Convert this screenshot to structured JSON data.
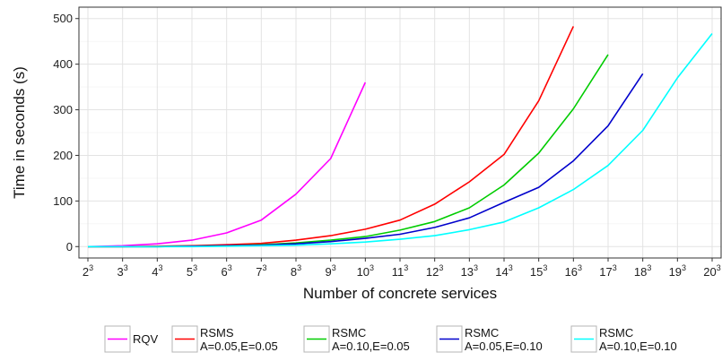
{
  "chart_data": {
    "type": "line",
    "xlabel": "Number of concrete services",
    "ylabel": "Time in seconds (s)",
    "ylim": [
      0,
      500
    ],
    "y_ticks": [
      0,
      100,
      200,
      300,
      400,
      500
    ],
    "x": [
      2,
      3,
      4,
      5,
      6,
      7,
      8,
      9,
      10,
      11,
      12,
      13,
      14,
      15,
      16,
      17,
      18,
      19,
      20
    ],
    "x_tick_bases": [
      "2",
      "3",
      "4",
      "5",
      "6",
      "7",
      "8",
      "9",
      "10",
      "11",
      "12",
      "13",
      "14",
      "15",
      "16",
      "17",
      "18",
      "19",
      "20"
    ],
    "x_tick_exponent": "3",
    "grid": true,
    "legend_position": "bottom",
    "series": [
      {
        "name": "RQV",
        "name_line2": "",
        "color": "#ff00ff",
        "x": [
          2,
          3,
          4,
          5,
          6,
          7,
          8,
          9,
          10
        ],
        "values": [
          0,
          2,
          6,
          14,
          30,
          58,
          115,
          193,
          360
        ]
      },
      {
        "name": "RSMS",
        "name_line2": "A=0.05,E=0.05",
        "color": "#ff0000",
        "x": [
          2,
          3,
          4,
          5,
          6,
          7,
          8,
          9,
          10,
          11,
          12,
          13,
          14,
          15,
          16
        ],
        "values": [
          0,
          0,
          1,
          2,
          4,
          7,
          14,
          24,
          38,
          58,
          93,
          142,
          202,
          320,
          483
        ]
      },
      {
        "name": "RSMC",
        "name_line2": "A=0.10,E=0.05",
        "color": "#00cc00",
        "x": [
          2,
          3,
          4,
          5,
          6,
          7,
          8,
          9,
          10,
          11,
          12,
          13,
          14,
          15,
          16,
          17
        ],
        "values": [
          0,
          0,
          0,
          1,
          2,
          4,
          8,
          14,
          22,
          36,
          55,
          85,
          135,
          205,
          302,
          421
        ]
      },
      {
        "name": "RSMC",
        "name_line2": "A=0.05,E=0.10",
        "color": "#0000cc",
        "x": [
          2,
          3,
          4,
          5,
          6,
          7,
          8,
          9,
          10,
          11,
          12,
          13,
          14,
          15,
          16,
          17,
          18
        ],
        "values": [
          0,
          0,
          0,
          1,
          2,
          3,
          6,
          11,
          18,
          27,
          42,
          63,
          97,
          130,
          188,
          265,
          379
        ]
      },
      {
        "name": "RSMC",
        "name_line2": "A=0.10,E=0.10",
        "color": "#00ffff",
        "x": [
          2,
          3,
          4,
          5,
          6,
          7,
          8,
          9,
          10,
          11,
          12,
          13,
          14,
          15,
          16,
          17,
          18,
          19,
          20
        ],
        "values": [
          0,
          0,
          0,
          0,
          1,
          2,
          3,
          6,
          10,
          16,
          24,
          37,
          54,
          85,
          125,
          178,
          255,
          370,
          467
        ]
      }
    ]
  }
}
